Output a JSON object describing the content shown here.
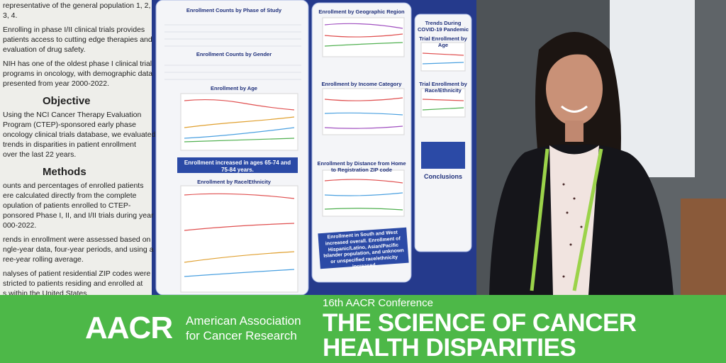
{
  "left_column": {
    "intro": [
      "representative of the general population 1, 2,",
      "3, 4.",
      "Enrolling in phase I/II clinical trials provides",
      "patients access to cutting edge therapies and",
      "evaluation of drug safety.",
      "NIH has one of the oldest phase I clinical trial",
      "programs in oncology, with demographic data",
      "presented from year 2000-2022."
    ],
    "objective": {
      "heading": "Objective",
      "lines": [
        "Using the NCI Cancer Therapy Evaluation",
        "Program (CTEP)-sponsored early phase",
        "oncology clinical trials database, we evaluated",
        "trends in disparities in patient enrollment",
        "over the last 22 years."
      ]
    },
    "methods": {
      "heading": "Methods",
      "lines": [
        "ounts and percentages of enrolled patients",
        "ere calculated directly from the complete",
        "opulation of patients enrolled to CTEP-",
        "ponsored Phase I, II, and I/II trials during year",
        "000-2022.",
        "rends in enrollment were assessed based on",
        "ngle-year data, four-year periods, and using a",
        "ree-year rolling average.",
        "nalyses of patient residential ZIP codes were",
        "stricted to patients residing and enrolled at",
        "s within the United States."
      ]
    }
  },
  "panel_1": {
    "titles": [
      "Enrollment Counts by Phase of Study",
      "Enrollment Counts by Gender",
      "Enrollment by Age",
      "Enrollment by Race/Ethnicity"
    ],
    "callout": "Enrollment increased in ages 65-74 and 75-84 years."
  },
  "panel_2": {
    "titles": [
      "Enrollment by Geographic Region",
      "Enrollment by Income Category",
      "Enrollment by Distance from Home to Registration ZIP code"
    ],
    "callout": "Enrollment in South and West increased overall. Enrollment of Hispanic/Latino, Asian/Pacific Islander population, and unknown or unspecified race/ethnicity increased."
  },
  "panel_3": {
    "titles": [
      "Trends During COVID-19 Pandemic",
      "Trial Enrollment by Age",
      "Trial Enrollment by Race/Ethnicity",
      "Conclusions"
    ]
  },
  "banner": {
    "logo": "AACR",
    "org_line_1": "American Association",
    "org_line_2": "for Cancer Research",
    "conference": "16th AACR Conference",
    "title_line_1": "THE SCIENCE OF CANCER",
    "title_line_2": "HEALTH DISPARITIES"
  }
}
